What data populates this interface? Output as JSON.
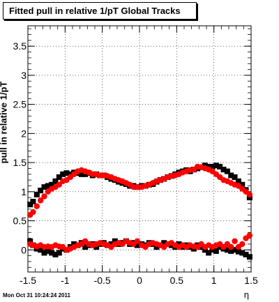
{
  "chart_data": {
    "type": "scatter",
    "title": "Fitted pull in relative 1/pT  Global Tracks",
    "xlabel": "η",
    "ylabel": "pull in relative 1/pT",
    "xlim": [
      -1.5,
      1.5
    ],
    "ylim": [
      -0.38,
      3.85
    ],
    "x_ticks": [
      "-1.5",
      "-1",
      "-0.5",
      "0",
      "0.5",
      "1",
      "1.5"
    ],
    "y_ticks": [
      "0",
      "0.5",
      "1",
      "1.5",
      "2",
      "2.5",
      "3",
      "3.5"
    ],
    "grid": true,
    "series": [
      {
        "color": "#000000",
        "x": [
          -1.47,
          -1.43,
          -1.38,
          -1.33,
          -1.28,
          -1.23,
          -1.18,
          -1.13,
          -1.08,
          -1.03,
          -0.98,
          -0.93,
          -0.88,
          -0.83,
          -0.78,
          -0.73,
          -0.68,
          -0.63,
          -0.58,
          -0.53,
          -0.48,
          -0.43,
          -0.38,
          -0.33,
          -0.28,
          -0.23,
          -0.18,
          -0.13,
          -0.08,
          -0.03,
          0.03,
          0.08,
          0.13,
          0.18,
          0.23,
          0.28,
          0.33,
          0.38,
          0.43,
          0.48,
          0.53,
          0.58,
          0.63,
          0.68,
          0.73,
          0.78,
          0.83,
          0.88,
          0.93,
          0.98,
          1.03,
          1.08,
          1.13,
          1.18,
          1.23,
          1.28,
          1.33,
          1.38,
          1.43,
          1.48
        ],
        "y": [
          0.78,
          0.83,
          0.95,
          1.02,
          1.08,
          1.1,
          1.12,
          1.18,
          1.25,
          1.3,
          1.32,
          1.3,
          1.33,
          1.32,
          1.3,
          1.3,
          1.32,
          1.28,
          1.3,
          1.28,
          1.28,
          1.25,
          1.22,
          1.2,
          1.17,
          1.15,
          1.13,
          1.1,
          1.1,
          1.08,
          1.1,
          1.1,
          1.12,
          1.13,
          1.17,
          1.2,
          1.22,
          1.25,
          1.27,
          1.3,
          1.33,
          1.35,
          1.37,
          1.35,
          1.38,
          1.4,
          1.42,
          1.45,
          1.43,
          1.43,
          1.45,
          1.43,
          1.38,
          1.35,
          1.28,
          1.25,
          1.18,
          1.12,
          1.03,
          0.9
        ]
      },
      {
        "color": "#ff0000",
        "x": [
          -1.47,
          -1.43,
          -1.38,
          -1.33,
          -1.28,
          -1.23,
          -1.18,
          -1.13,
          -1.08,
          -1.03,
          -0.98,
          -0.93,
          -0.88,
          -0.83,
          -0.78,
          -0.73,
          -0.68,
          -0.63,
          -0.58,
          -0.53,
          -0.48,
          -0.43,
          -0.38,
          -0.33,
          -0.28,
          -0.23,
          -0.18,
          -0.13,
          -0.08,
          -0.03,
          0.03,
          0.08,
          0.13,
          0.18,
          0.23,
          0.28,
          0.33,
          0.38,
          0.43,
          0.48,
          0.53,
          0.58,
          0.63,
          0.68,
          0.73,
          0.78,
          0.83,
          0.88,
          0.93,
          0.98,
          1.03,
          1.08,
          1.13,
          1.18,
          1.23,
          1.28,
          1.33,
          1.38,
          1.43,
          1.48
        ],
        "y": [
          0.6,
          0.65,
          0.75,
          0.85,
          0.92,
          1.0,
          1.05,
          1.08,
          1.12,
          1.18,
          1.2,
          1.25,
          1.3,
          1.35,
          1.37,
          1.35,
          1.33,
          1.3,
          1.3,
          1.28,
          1.28,
          1.27,
          1.25,
          1.22,
          1.2,
          1.18,
          1.15,
          1.12,
          1.08,
          1.08,
          1.08,
          1.1,
          1.12,
          1.15,
          1.18,
          1.2,
          1.22,
          1.25,
          1.27,
          1.28,
          1.3,
          1.33,
          1.35,
          1.37,
          1.38,
          1.43,
          1.42,
          1.4,
          1.38,
          1.35,
          1.3,
          1.25,
          1.2,
          1.18,
          1.15,
          1.12,
          1.1,
          1.05,
          1.0,
          0.95
        ]
      },
      {
        "color": "#000000",
        "x": [
          -1.47,
          -1.43,
          -1.38,
          -1.33,
          -1.28,
          -1.23,
          -1.18,
          -1.13,
          -1.08,
          -1.03,
          -0.98,
          -0.93,
          -0.88,
          -0.83,
          -0.78,
          -0.73,
          -0.68,
          -0.63,
          -0.58,
          -0.53,
          -0.48,
          -0.43,
          -0.38,
          -0.33,
          -0.28,
          -0.23,
          -0.18,
          -0.13,
          -0.08,
          -0.03,
          0.03,
          0.08,
          0.13,
          0.18,
          0.23,
          0.28,
          0.33,
          0.38,
          0.43,
          0.48,
          0.53,
          0.58,
          0.63,
          0.68,
          0.73,
          0.78,
          0.83,
          0.88,
          0.93,
          0.98,
          1.03,
          1.08,
          1.13,
          1.18,
          1.23,
          1.28,
          1.33,
          1.38,
          1.43,
          1.48
        ],
        "y": [
          0.15,
          0.08,
          0.02,
          0.0,
          -0.05,
          -0.02,
          -0.05,
          -0.08,
          -0.05,
          0.02,
          0.0,
          0.05,
          0.1,
          0.08,
          0.12,
          0.05,
          0.08,
          0.1,
          0.05,
          0.1,
          0.12,
          0.08,
          0.1,
          0.15,
          0.1,
          0.12,
          0.15,
          0.1,
          0.12,
          0.08,
          0.1,
          0.08,
          0.12,
          0.1,
          0.05,
          0.08,
          0.12,
          0.1,
          0.08,
          0.05,
          0.1,
          0.05,
          0.08,
          0.05,
          0.02,
          0.08,
          0.05,
          0.0,
          -0.05,
          0.0,
          -0.02,
          0.05,
          0.02,
          0.0,
          -0.02,
          0.0,
          -0.03,
          -0.05,
          -0.08,
          -0.12
        ]
      },
      {
        "color": "#ff0000",
        "x": [
          -1.47,
          -1.43,
          -1.38,
          -1.33,
          -1.28,
          -1.23,
          -1.18,
          -1.13,
          -1.08,
          -1.03,
          -0.98,
          -0.93,
          -0.88,
          -0.83,
          -0.78,
          -0.73,
          -0.68,
          -0.63,
          -0.58,
          -0.53,
          -0.48,
          -0.43,
          -0.38,
          -0.33,
          -0.28,
          -0.23,
          -0.18,
          -0.13,
          -0.08,
          -0.03,
          0.03,
          0.08,
          0.13,
          0.18,
          0.23,
          0.28,
          0.33,
          0.38,
          0.43,
          0.48,
          0.53,
          0.58,
          0.63,
          0.68,
          0.73,
          0.78,
          0.83,
          0.88,
          0.93,
          0.98,
          1.03,
          1.08,
          1.13,
          1.18,
          1.23,
          1.28,
          1.33,
          1.38,
          1.43,
          1.48
        ],
        "y": [
          0.1,
          0.08,
          0.06,
          0.08,
          0.05,
          0.06,
          0.05,
          0.08,
          0.06,
          0.05,
          0.0,
          0.02,
          0.05,
          0.08,
          0.1,
          0.15,
          0.1,
          0.08,
          0.1,
          0.12,
          0.1,
          0.08,
          0.05,
          0.1,
          0.12,
          0.1,
          0.15,
          0.12,
          0.1,
          0.15,
          0.08,
          0.05,
          0.1,
          0.12,
          0.1,
          0.08,
          0.05,
          0.1,
          0.12,
          0.08,
          0.05,
          0.08,
          0.05,
          0.08,
          0.06,
          0.05,
          0.1,
          0.05,
          0.08,
          0.05,
          0.08,
          0.1,
          0.05,
          0.1,
          0.05,
          0.15,
          0.05,
          0.1,
          0.2,
          0.25
        ]
      }
    ]
  },
  "footer": "Mon Oct 31 10:24:24 2011"
}
